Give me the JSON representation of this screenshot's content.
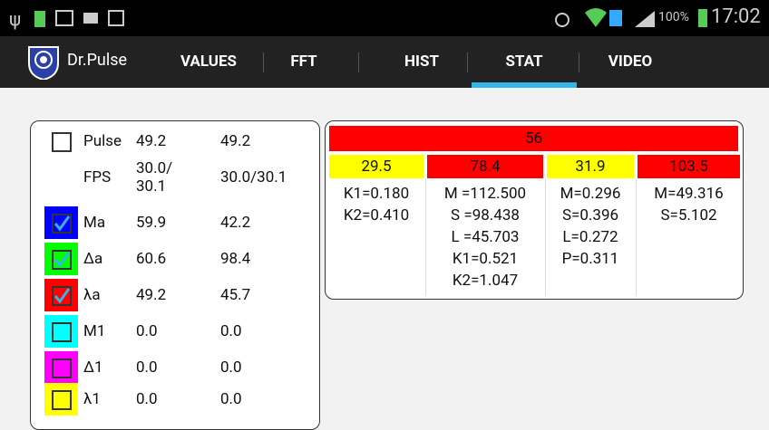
{
  "status": {
    "battery": "100%",
    "time": "17:02"
  },
  "app": {
    "title": "Dr.Pulse"
  },
  "tabs": [
    {
      "label": "VALUES"
    },
    {
      "label": "FFT"
    },
    {
      "label": "HIST"
    },
    {
      "label": "STAT",
      "selected": true
    },
    {
      "label": "VIDEO"
    }
  ],
  "values": {
    "rows": [
      {
        "label": "Pulse",
        "v1": "49.2",
        "v2": "49.2",
        "color": "#ffffff",
        "checked": false,
        "box": true
      },
      {
        "label": "FPS",
        "v1": "30.0/\n30.1",
        "v2": "30.0/30.1",
        "color": "#ffffff",
        "checked": false,
        "box": false
      },
      {
        "label": "Ma",
        "v1": "59.9",
        "v2": "42.2",
        "color": "#0000ff",
        "checked": true,
        "box": true
      },
      {
        "label": "Δa",
        "v1": "60.6",
        "v2": "98.4",
        "color": "#00ff00",
        "checked": true,
        "box": true
      },
      {
        "label": "λa",
        "v1": "49.2",
        "v2": "45.7",
        "color": "#ff0000",
        "checked": true,
        "box": true
      },
      {
        "label": "M1",
        "v1": "0.0",
        "v2": "0.0",
        "color": "#00ffff",
        "checked": false,
        "box": true
      },
      {
        "label": "Δ1",
        "v1": "0.0",
        "v2": "0.0",
        "color": "#ff00ff",
        "checked": false,
        "box": true
      },
      {
        "label": "λ1",
        "v1": "0.0",
        "v2": "0.0",
        "color": "#ffff00",
        "checked": false,
        "box": true
      }
    ]
  },
  "stat": {
    "header": {
      "value": "56",
      "color": "#ff0000"
    },
    "columns": [
      {
        "value": "29.5",
        "color": "#ffff00",
        "lines": [
          "K1=0.180",
          "K2=0.410"
        ]
      },
      {
        "value": "78.4",
        "color": "#ff0000",
        "lines": [
          "M =112.500",
          "S =98.438",
          "L =45.703",
          "K1=0.521",
          "K2=1.047"
        ]
      },
      {
        "value": "31.9",
        "color": "#ffff00",
        "lines": [
          "M=0.296",
          "S=0.396",
          "L=0.272",
          "P=0.311"
        ]
      },
      {
        "value": "103.5",
        "color": "#ff0000",
        "lines": [
          "M=49.316",
          "S=5.102"
        ]
      }
    ]
  }
}
